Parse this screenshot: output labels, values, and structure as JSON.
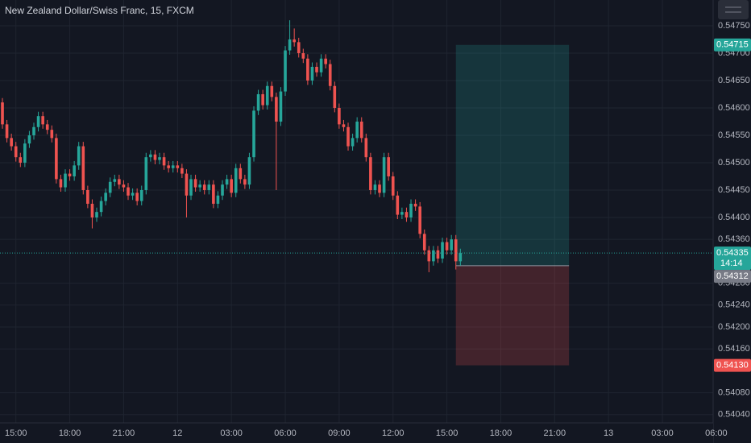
{
  "chart_data": {
    "type": "candlestick",
    "title": "New Zealand Dollar/Swiss Franc, 15, FXCM",
    "up_color": "#26a69a",
    "down_color": "#ef5350",
    "grid": true,
    "xlim": [
      -0.54,
      158.3
    ],
    "ylim": [
      0.54025,
      0.54797
    ],
    "xticks": [
      {
        "value": 3,
        "label": "15:00"
      },
      {
        "value": 15,
        "label": "18:00"
      },
      {
        "value": 27,
        "label": "21:00"
      },
      {
        "value": 39,
        "label": "12"
      },
      {
        "value": 51,
        "label": "03:00"
      },
      {
        "value": 63,
        "label": "06:00"
      },
      {
        "value": 75,
        "label": "09:00"
      },
      {
        "value": 87,
        "label": "12:00"
      },
      {
        "value": 99,
        "label": "15:00"
      },
      {
        "value": 111,
        "label": "18:00"
      },
      {
        "value": 123,
        "label": "21:00"
      },
      {
        "value": 135,
        "label": "13"
      },
      {
        "value": 147,
        "label": "03:00"
      },
      {
        "value": 159,
        "label": "06:00"
      }
    ],
    "yticks": [
      {
        "value": 0.5475,
        "label": "0.54750"
      },
      {
        "value": 0.547,
        "label": "0.54700"
      },
      {
        "value": 0.5465,
        "label": "0.54650"
      },
      {
        "value": 0.546,
        "label": "0.54600"
      },
      {
        "value": 0.5455,
        "label": "0.54550"
      },
      {
        "value": 0.545,
        "label": "0.54500"
      },
      {
        "value": 0.5445,
        "label": "0.54450"
      },
      {
        "value": 0.544,
        "label": "0.54400"
      },
      {
        "value": 0.5436,
        "label": "0.54360"
      },
      {
        "value": 0.5428,
        "label": "0.54280"
      },
      {
        "value": 0.5424,
        "label": "0.54240"
      },
      {
        "value": 0.542,
        "label": "0.54200"
      },
      {
        "value": 0.5416,
        "label": "0.54160"
      },
      {
        "value": 0.5408,
        "label": "0.54080"
      },
      {
        "value": 0.5404,
        "label": "0.54040"
      }
    ],
    "open": [
      0.5461,
      0.5457,
      0.54545,
      0.5453,
      0.5451,
      0.545,
      0.54535,
      0.5455,
      0.54565,
      0.54585,
      0.5457,
      0.5456,
      0.54545,
      0.5447,
      0.54455,
      0.5448,
      0.54475,
      0.54495,
      0.5453,
      0.5445,
      0.54425,
      0.544,
      0.5441,
      0.5443,
      0.54445,
      0.54465,
      0.5447,
      0.5446,
      0.54455,
      0.5444,
      0.54445,
      0.5443,
      0.5445,
      0.5451,
      0.54515,
      0.54505,
      0.5451,
      0.54495,
      0.5449,
      0.54495,
      0.5449,
      0.5448,
      0.5444,
      0.5447,
      0.54455,
      0.5446,
      0.5445,
      0.5446,
      0.54425,
      0.5444,
      0.5446,
      0.5447,
      0.54445,
      0.5449,
      0.5447,
      0.5446,
      0.5451,
      0.54595,
      0.54625,
      0.54605,
      0.5464,
      0.5462,
      0.54575,
      0.5463,
      0.54705,
      0.54725,
      0.5472,
      0.547,
      0.5469,
      0.5465,
      0.54675,
      0.54665,
      0.5469,
      0.5468,
      0.5464,
      0.546,
      0.5457,
      0.54565,
      0.5453,
      0.54545,
      0.54575,
      0.54545,
      0.5451,
      0.5445,
      0.5446,
      0.54445,
      0.5451,
      0.54475,
      0.5444,
      0.54405,
      0.5441,
      0.544,
      0.54425,
      0.5442,
      0.5437,
      0.5434,
      0.5432,
      0.5434,
      0.54325,
      0.54355,
      0.5434,
      0.5436,
      0.5432
    ],
    "high": [
      0.54618,
      0.54578,
      0.54553,
      0.54538,
      0.54518,
      0.54543,
      0.54558,
      0.54573,
      0.54593,
      0.54593,
      0.54578,
      0.54568,
      0.54553,
      0.54478,
      0.54488,
      0.54488,
      0.54503,
      0.54538,
      0.54538,
      0.54458,
      0.54433,
      0.54418,
      0.54438,
      0.54453,
      0.54473,
      0.54478,
      0.54478,
      0.54468,
      0.54463,
      0.54453,
      0.54453,
      0.54458,
      0.54518,
      0.54523,
      0.54523,
      0.54518,
      0.54518,
      0.54503,
      0.54503,
      0.54503,
      0.54498,
      0.54488,
      0.54478,
      0.54478,
      0.54468,
      0.54468,
      0.54468,
      0.54468,
      0.54448,
      0.54468,
      0.54478,
      0.54478,
      0.54498,
      0.54498,
      0.54478,
      0.54518,
      0.54603,
      0.54633,
      0.54633,
      0.54648,
      0.54648,
      0.54628,
      0.54638,
      0.54713,
      0.5476,
      0.54745,
      0.54728,
      0.54708,
      0.54698,
      0.54683,
      0.54683,
      0.54698,
      0.54698,
      0.54688,
      0.54648,
      0.54608,
      0.54578,
      0.54573,
      0.54553,
      0.54583,
      0.54583,
      0.54553,
      0.54518,
      0.54468,
      0.54468,
      0.54518,
      0.54518,
      0.54483,
      0.54448,
      0.54418,
      0.54418,
      0.54433,
      0.54433,
      0.54428,
      0.54378,
      0.54348,
      0.54348,
      0.54348,
      0.54363,
      0.54363,
      0.54368,
      0.54368,
      0.54343
    ],
    "low": [
      0.54562,
      0.54537,
      0.54522,
      0.54502,
      0.54492,
      0.54492,
      0.54527,
      0.54542,
      0.54557,
      0.54562,
      0.54552,
      0.54537,
      0.54462,
      0.54447,
      0.54447,
      0.54467,
      0.54467,
      0.54487,
      0.54442,
      0.54417,
      0.5438,
      0.54392,
      0.54402,
      0.54422,
      0.54437,
      0.54457,
      0.54452,
      0.54447,
      0.54432,
      0.54432,
      0.54422,
      0.54422,
      0.54442,
      0.54502,
      0.54497,
      0.54497,
      0.54487,
      0.54482,
      0.54482,
      0.54482,
      0.54472,
      0.544,
      0.54432,
      0.54447,
      0.54447,
      0.54442,
      0.54442,
      0.54417,
      0.54417,
      0.54432,
      0.54452,
      0.54437,
      0.54437,
      0.54462,
      0.54452,
      0.54452,
      0.54502,
      0.54587,
      0.54597,
      0.54597,
      0.54612,
      0.5445,
      0.54567,
      0.54622,
      0.54697,
      0.54712,
      0.54692,
      0.54682,
      0.54642,
      0.54642,
      0.54657,
      0.54657,
      0.54672,
      0.54632,
      0.54592,
      0.54562,
      0.54557,
      0.54522,
      0.54522,
      0.54537,
      0.54537,
      0.54502,
      0.54442,
      0.54442,
      0.54437,
      0.54437,
      0.54467,
      0.54432,
      0.54397,
      0.54397,
      0.54392,
      0.54392,
      0.54412,
      0.54362,
      0.54332,
      0.543,
      0.54312,
      0.54317,
      0.54317,
      0.54332,
      0.54332,
      0.54305,
      0.54312
    ],
    "close": [
      0.5457,
      0.54545,
      0.5453,
      0.5451,
      0.545,
      0.54535,
      0.5455,
      0.54565,
      0.54585,
      0.5457,
      0.5456,
      0.54545,
      0.5447,
      0.54455,
      0.5448,
      0.54475,
      0.54495,
      0.5453,
      0.5445,
      0.54425,
      0.544,
      0.5441,
      0.5443,
      0.54445,
      0.54465,
      0.5447,
      0.5446,
      0.54455,
      0.5444,
      0.54445,
      0.5443,
      0.5445,
      0.5451,
      0.54515,
      0.54505,
      0.5451,
      0.54495,
      0.5449,
      0.54495,
      0.5449,
      0.5448,
      0.5444,
      0.5447,
      0.54455,
      0.5446,
      0.5445,
      0.5446,
      0.54425,
      0.5444,
      0.5446,
      0.5447,
      0.54445,
      0.5449,
      0.5447,
      0.5446,
      0.5451,
      0.54595,
      0.54625,
      0.54605,
      0.5464,
      0.5462,
      0.54575,
      0.5463,
      0.54705,
      0.54725,
      0.5472,
      0.547,
      0.5469,
      0.5465,
      0.54675,
      0.54665,
      0.5469,
      0.5468,
      0.5464,
      0.546,
      0.5457,
      0.54565,
      0.5453,
      0.54545,
      0.54575,
      0.54545,
      0.5451,
      0.5445,
      0.5446,
      0.54445,
      0.5451,
      0.54475,
      0.5444,
      0.54405,
      0.5441,
      0.544,
      0.54425,
      0.5442,
      0.5437,
      0.5434,
      0.5432,
      0.5434,
      0.54325,
      0.54355,
      0.5434,
      0.5436,
      0.5432,
      0.54335
    ],
    "last_price": {
      "value": 0.54335,
      "label": "0.54335"
    },
    "countdown": "14:14",
    "position": {
      "start": 101,
      "end": 126.2,
      "target": {
        "value": 0.54715,
        "label": "0.54715"
      },
      "entry": {
        "value": 0.54312,
        "label": "0.54312"
      },
      "stop": {
        "value": 0.5413,
        "label": "0.5413",
        "label_text": "0.54130"
      }
    }
  }
}
